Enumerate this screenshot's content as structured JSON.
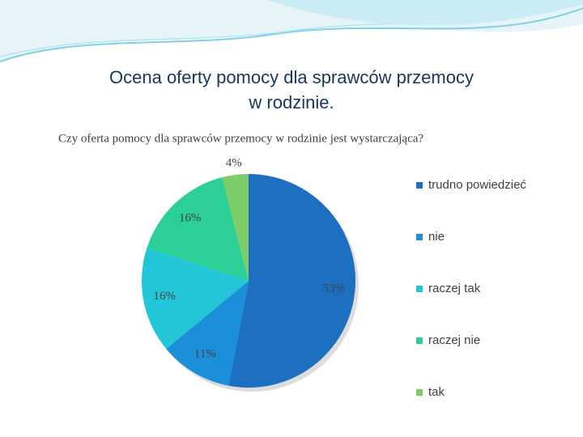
{
  "slide_title": [
    "Ocena oferty pomocy dla sprawców przemocy",
    "w rodzinie."
  ],
  "chart_data": {
    "type": "pie",
    "title": "Czy oferta pomocy dla sprawców przemocy w rodzinie jest wystarczająca?",
    "categories": [
      "trudno powiedzieć",
      "nie",
      "raczej tak",
      "raczej nie",
      "tak"
    ],
    "values": [
      53,
      11,
      16,
      16,
      4
    ],
    "value_labels": [
      "53%",
      "11%",
      "16%",
      "16%",
      "4%"
    ],
    "colors": [
      "#1d6fc0",
      "#1b8fd9",
      "#22c6d6",
      "#2ccf96",
      "#7dcc6a"
    ],
    "legend": "right"
  }
}
